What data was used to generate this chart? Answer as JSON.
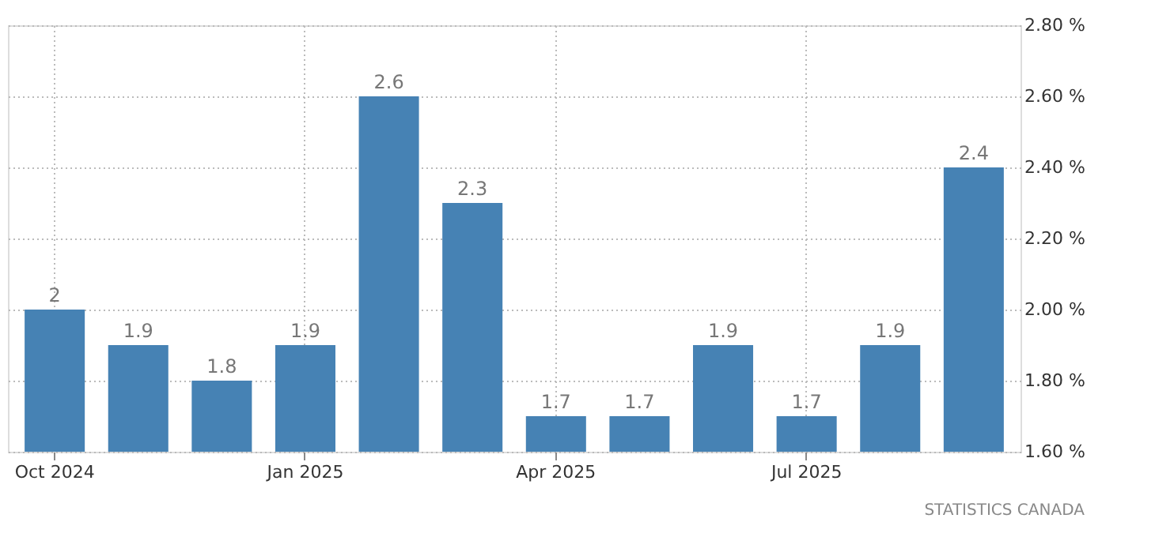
{
  "chart_data": {
    "type": "bar",
    "categories": [
      "Oct 2024",
      null,
      null,
      "Jan 2025",
      null,
      null,
      "Apr 2025",
      null,
      null,
      "Jul 2025",
      null,
      null
    ],
    "values": [
      2,
      1.9,
      1.8,
      1.9,
      2.6,
      2.3,
      1.7,
      1.7,
      1.9,
      1.7,
      1.9,
      2.4
    ],
    "color": "#4682b4",
    "ylim": [
      1.6,
      2.8
    ],
    "yticks": [
      {
        "value": 1.6,
        "label": "1.60 %"
      },
      {
        "value": 1.8,
        "label": "1.80 %"
      },
      {
        "value": 2.0,
        "label": "2.00 %"
      },
      {
        "value": 2.2,
        "label": "2.20 %"
      },
      {
        "value": 2.4,
        "label": "2.40 %"
      },
      {
        "value": 2.6,
        "label": "2.60 %"
      },
      {
        "value": 2.8,
        "label": "2.80 %"
      }
    ],
    "grid": true,
    "data_labels": true,
    "annotations": [
      "STATISTICS CANADA"
    ]
  }
}
